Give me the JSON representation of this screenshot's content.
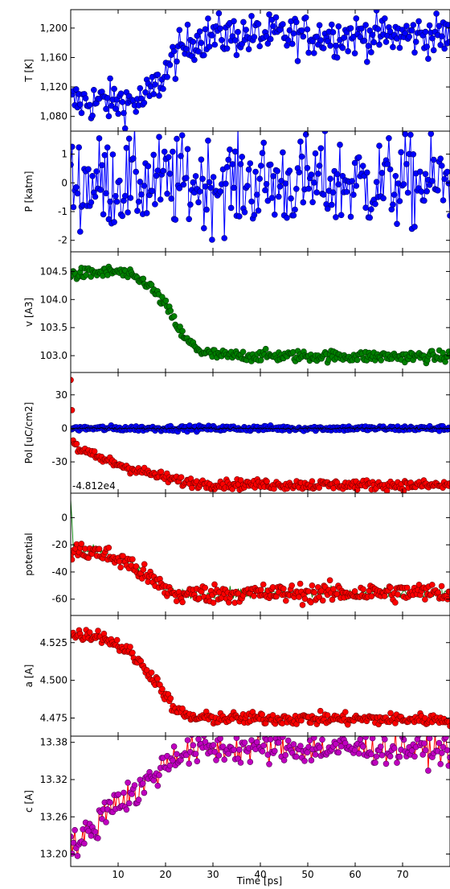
{
  "figure": {
    "xlabel": "Time [ps]",
    "xticks": [
      10,
      20,
      30,
      40,
      50,
      60,
      70
    ],
    "xlim": [
      0,
      80
    ]
  },
  "chart_data": [
    {
      "type": "scatter",
      "id": "T",
      "ylabel": "T [K]",
      "ylim": [
        1060,
        1225
      ],
      "yticks": [
        1080,
        1120,
        1160,
        1200
      ],
      "yticklabels": [
        "1,080",
        "1,120",
        "1,160",
        "1,200"
      ],
      "x_range": [
        0,
        80
      ],
      "point_count": 280,
      "series": [
        {
          "color": "#0000ff",
          "style": "line+markers",
          "profile": [
            [
              0,
              1100
            ],
            [
              15,
              1100
            ],
            [
              18,
              1120
            ],
            [
              22,
              1160
            ],
            [
              26,
              1185
            ],
            [
              30,
              1190
            ],
            [
              80,
              1190
            ]
          ],
          "noise": 14
        }
      ]
    },
    {
      "type": "scatter",
      "id": "P",
      "ylabel": "P [katm]",
      "ylim": [
        -2.4,
        1.8
      ],
      "yticks": [
        -2,
        -1,
        0,
        1
      ],
      "yticklabels": [
        "-2",
        "-1",
        "0",
        "1"
      ],
      "x_range": [
        0,
        80
      ],
      "point_count": 280,
      "series": [
        {
          "color": "#0000ff",
          "style": "line+markers",
          "profile": [
            [
              0,
              0
            ],
            [
              80,
              0
            ]
          ],
          "noise": 0.8
        }
      ]
    },
    {
      "type": "scatter",
      "id": "v",
      "ylabel": "v [A3]",
      "ylim": [
        102.7,
        104.85
      ],
      "yticks": [
        103.0,
        103.5,
        104.0,
        104.5
      ],
      "yticklabels": [
        "103.0",
        "103.5",
        "104.0",
        "104.5"
      ],
      "x_range": [
        0,
        80
      ],
      "point_count": 320,
      "series": [
        {
          "color": "#008000",
          "style": "markers",
          "profile": [
            [
              0,
              104.45
            ],
            [
              10,
              104.5
            ],
            [
              16,
              104.3
            ],
            [
              20,
              103.9
            ],
            [
              24,
              103.3
            ],
            [
              28,
              103.05
            ],
            [
              32,
              103.0
            ],
            [
              80,
              102.98
            ]
          ],
          "noise": 0.05
        }
      ]
    },
    {
      "type": "scatter",
      "id": "Pol",
      "ylabel": "Pol [uC/cm2]",
      "ylim": [
        -58,
        50
      ],
      "yticks": [
        -30,
        0,
        30
      ],
      "yticklabels": [
        "-30",
        "0",
        "30"
      ],
      "offset_text": "-4.812e4",
      "x_range": [
        0,
        80
      ],
      "point_count": 320,
      "series": [
        {
          "color": "#0000ff",
          "style": "line+markers",
          "profile": [
            [
              0,
              0
            ],
            [
              80,
              0
            ]
          ],
          "noise": 1.2
        },
        {
          "color": "#000000",
          "style": "line",
          "profile": [
            [
              0,
              0
            ],
            [
              80,
              0
            ]
          ],
          "noise": 0.5
        },
        {
          "color": "#ff0000",
          "style": "markers",
          "profile": [
            [
              0,
              45
            ],
            [
              0.5,
              -10
            ],
            [
              1.5,
              -18
            ],
            [
              5,
              -25
            ],
            [
              12,
              -35
            ],
            [
              18,
              -42
            ],
            [
              24,
              -48
            ],
            [
              30,
              -50
            ],
            [
              80,
              -51
            ]
          ],
          "noise": 2.2
        }
      ]
    },
    {
      "type": "scatter",
      "id": "potential",
      "ylabel": "potential",
      "ylim": [
        -72,
        18
      ],
      "yticks": [
        -60,
        -40,
        -20,
        0
      ],
      "yticklabels": [
        "-60",
        "-40",
        "-20",
        "0"
      ],
      "x_range": [
        0,
        80
      ],
      "point_count": 320,
      "series": [
        {
          "color": "#008000",
          "style": "line",
          "profile": [
            [
              0,
              15
            ],
            [
              0.6,
              -25
            ],
            [
              5,
              -25
            ],
            [
              12,
              -33
            ],
            [
              18,
              -48
            ],
            [
              22,
              -57
            ],
            [
              28,
              -56
            ],
            [
              80,
              -55
            ]
          ],
          "noise": 2
        },
        {
          "color": "#ff0000",
          "style": "markers",
          "profile": [
            [
              0,
              -25
            ],
            [
              5,
              -25
            ],
            [
              12,
              -33
            ],
            [
              18,
              -48
            ],
            [
              22,
              -57
            ],
            [
              28,
              -56
            ],
            [
              80,
              -55
            ]
          ],
          "noise": 3.5
        }
      ]
    },
    {
      "type": "scatter",
      "id": "a",
      "ylabel": "a [A]",
      "ylim": [
        4.463,
        4.543
      ],
      "yticks": [
        4.475,
        4.5,
        4.525
      ],
      "yticklabels": [
        "4.475",
        "4.500",
        "4.525"
      ],
      "x_range": [
        0,
        80
      ],
      "point_count": 320,
      "series": [
        {
          "color": "#ff0000",
          "style": "markers",
          "profile": [
            [
              0,
              4.53
            ],
            [
              6,
              4.53
            ],
            [
              12,
              4.52
            ],
            [
              18,
              4.5
            ],
            [
              22,
              4.48
            ],
            [
              26,
              4.475
            ],
            [
              80,
              4.474
            ]
          ],
          "noise": 0.002
        }
      ]
    },
    {
      "type": "scatter",
      "id": "c",
      "ylabel": "c [A]",
      "ylim": [
        13.18,
        13.39
      ],
      "yticks": [
        13.2,
        13.26,
        13.32,
        13.38
      ],
      "yticklabels": [
        "13.20",
        "13.26",
        "13.32",
        "13.38"
      ],
      "x_range": [
        0,
        80
      ],
      "point_count": 280,
      "series": [
        {
          "color": "#bf00bf",
          "style": "line+markers",
          "line_color": "#ff0000",
          "profile": [
            [
              0,
              13.21
            ],
            [
              5,
              13.24
            ],
            [
              8,
              13.28
            ],
            [
              14,
              13.3
            ],
            [
              18,
              13.33
            ],
            [
              22,
              13.36
            ],
            [
              28,
              13.37
            ],
            [
              80,
              13.37
            ]
          ],
          "noise": 0.012
        }
      ]
    }
  ]
}
